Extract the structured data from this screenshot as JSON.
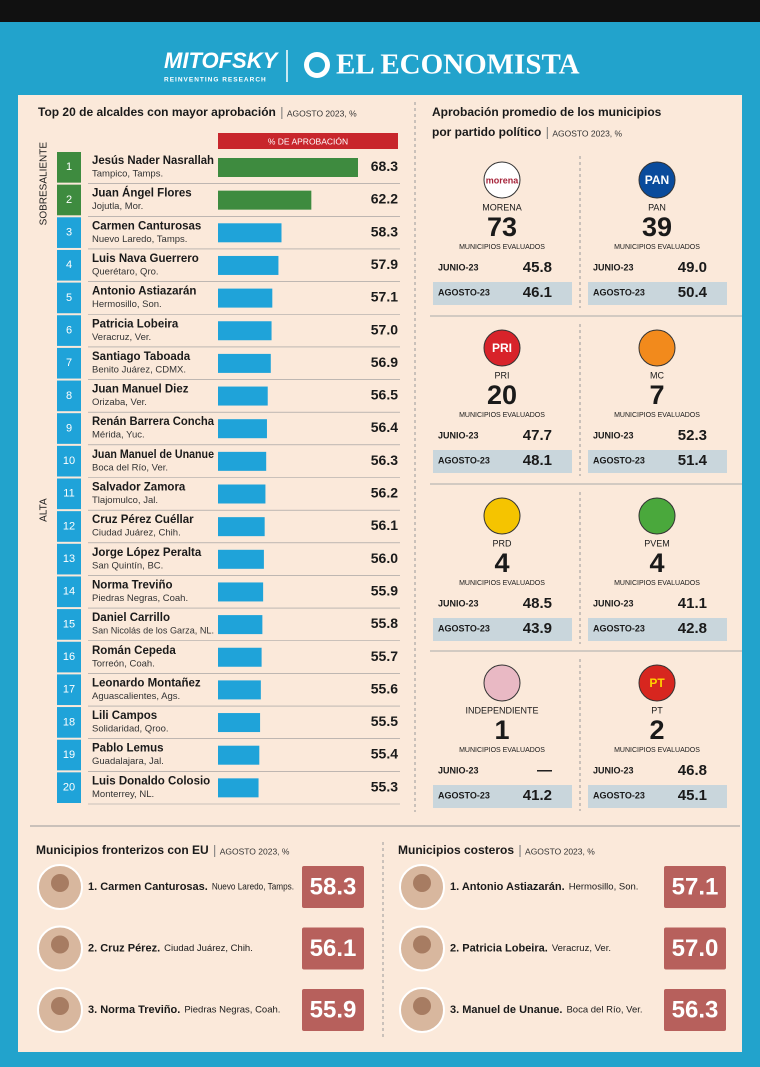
{
  "header": {
    "brand_left": "MITOFSKY",
    "brand_left_tagline": "REINVENTING RESEARCH",
    "brand_right": "EL ECONOMISTA"
  },
  "chart_data": {
    "type": "bar",
    "orientation": "horizontal",
    "title": "Top 20 de alcaldes con mayor aprobación",
    "subtitle": "AGOSTO 2023, %",
    "value_header": "% DE APROBACIÓN",
    "ranks": [
      1,
      2,
      3,
      4,
      5,
      6,
      7,
      8,
      9,
      10,
      11,
      12,
      13,
      14,
      15,
      16,
      17,
      18,
      19,
      20
    ],
    "categories": [
      "Jesús Nader Nasrallah",
      "Juan Ángel Flores",
      "Carmen Canturosas",
      "Luis Nava Guerrero",
      "Antonio Astiazarán",
      "Patricia Lobeira",
      "Santiago Taboada",
      "Juan Manuel Diez",
      "Renán Barrera Concha",
      "Juan Manuel de Unanue",
      "Salvador Zamora",
      "Cruz Pérez Cuéllar",
      "Jorge López Peralta",
      "Norma Treviño",
      "Daniel Carrillo",
      "Román Cepeda",
      "Leonardo Montañez",
      "Lili Campos",
      "Pablo Lemus",
      "Luis Donaldo Colosio"
    ],
    "locations": [
      "Tampico, Tamps.",
      "Jojutla, Mor.",
      "Nuevo Laredo, Tamps.",
      "Querétaro, Qro.",
      "Hermosillo, Son.",
      "Veracruz, Ver.",
      "Benito Juárez, CDMX.",
      "Orizaba, Ver.",
      "Mérida, Yuc.",
      "Boca del Río, Ver.",
      "Tlajomulco, Jal.",
      "Ciudad Juárez, Chih.",
      "San Quintín, BC.",
      "Piedras Negras, Coah.",
      "San Nicolás de los Garza, NL.",
      "Torreón, Coah.",
      "Aguascalientes, Ags.",
      "Solidaridad, Qroo.",
      "Guadalajara, Jal.",
      "Monterrey, NL."
    ],
    "series": [
      {
        "name": "SOBRESALIENTE",
        "color": "#3e8b3f",
        "values": [
          68.3,
          62.2,
          null,
          null,
          null,
          null,
          null,
          null,
          null,
          null,
          null,
          null,
          null,
          null,
          null,
          null,
          null,
          null,
          null,
          null
        ],
        "value_labels": [
          "68.3",
          "62.2",
          null,
          null,
          null,
          null,
          null,
          null,
          null,
          null,
          null,
          null,
          null,
          null,
          null,
          null,
          null,
          null,
          null,
          null
        ]
      },
      {
        "name": "ALTA",
        "color": "#1fa3d9",
        "values": [
          null,
          null,
          58.3,
          57.9,
          57.1,
          57.0,
          56.9,
          56.5,
          56.4,
          56.3,
          56.2,
          56.1,
          56.0,
          55.9,
          55.8,
          55.7,
          55.6,
          55.5,
          55.4,
          55.3
        ],
        "value_labels": [
          null,
          null,
          "58.3",
          "57.9",
          "57.1",
          "57.0",
          "56.9",
          "56.5",
          "56.4",
          "56.3",
          "56.2",
          "56.1",
          "56.0",
          "55.9",
          "55.8",
          "55.7",
          "55.6",
          "55.5",
          "55.4",
          "55.3"
        ]
      }
    ],
    "xlim": [
      50,
      70
    ]
  },
  "parties": {
    "title_lines": [
      "Aprobación promedio de los municipios",
      "por partido político"
    ],
    "subtitle": "AGOSTO 2023, %",
    "items": [
      {
        "name": "MORENA",
        "logo": {
          "text": "morena",
          "fill": "#ffffff",
          "color": "#a6243a"
        },
        "count": 73,
        "count_label": "MUNICIPIOS EVALUADOS",
        "rows": [
          {
            "label": "JUNIO-23",
            "value": "45.8"
          },
          {
            "label": "AGOSTO-23",
            "value": "46.1"
          }
        ]
      },
      {
        "name": "PAN",
        "logo": {
          "text": "PAN",
          "fill": "#0a4b9c",
          "color": "#ffffff"
        },
        "count": 39,
        "count_label": "MUNICIPIOS EVALUADOS",
        "rows": [
          {
            "label": "JUNIO-23",
            "value": "49.0"
          },
          {
            "label": "AGOSTO-23",
            "value": "50.4"
          }
        ]
      },
      {
        "name": "PRI",
        "logo": {
          "text": "PRI",
          "fill": "#d8232a",
          "color": "#ffffff"
        },
        "count": 20,
        "count_label": "MUNICIPIOS EVALUADOS",
        "rows": [
          {
            "label": "JUNIO-23",
            "value": "47.7"
          },
          {
            "label": "AGOSTO-23",
            "value": "48.1"
          }
        ]
      },
      {
        "name": "MC",
        "logo": {
          "fill": "#f28a1c"
        },
        "count": 7,
        "count_label": "MUNICIPIOS EVALUADOS",
        "rows": [
          {
            "label": "JUNIO-23",
            "value": "52.3"
          },
          {
            "label": "AGOSTO-23",
            "value": "51.4"
          }
        ]
      },
      {
        "name": "PRD",
        "logo": {
          "fill": "#f5c400"
        },
        "count": 4,
        "count_label": "MUNICIPIOS EVALUADOS",
        "rows": [
          {
            "label": "JUNIO-23",
            "value": "48.5"
          },
          {
            "label": "AGOSTO-23",
            "value": "43.9"
          }
        ]
      },
      {
        "name": "PVEM",
        "logo": {
          "fill": "#4aa83c"
        },
        "count": 4,
        "count_label": "MUNICIPIOS EVALUADOS",
        "rows": [
          {
            "label": "JUNIO-23",
            "value": "41.1"
          },
          {
            "label": "AGOSTO-23",
            "value": "42.8"
          }
        ]
      },
      {
        "name": "INDEPENDIENTE",
        "logo": {
          "fill": "#e9b9c4"
        },
        "count": 1,
        "count_label": "MUNICIPIOS EVALUADOS",
        "rows": [
          {
            "label": "JUNIO-23",
            "value": "—"
          },
          {
            "label": "AGOSTO-23",
            "value": "41.2"
          }
        ]
      },
      {
        "name": "PT",
        "logo": {
          "text": "PT",
          "fill": "#d7261f",
          "color": "#ffd200"
        },
        "count": 2,
        "count_label": "MUNICIPIOS EVALUADOS",
        "rows": [
          {
            "label": "JUNIO-23",
            "value": "46.8"
          },
          {
            "label": "AGOSTO-23",
            "value": "45.1"
          }
        ]
      }
    ]
  },
  "border": {
    "title": "Municipios fronterizos con EU",
    "subtitle": "AGOSTO 2023, %",
    "items": [
      {
        "name": "1. Carmen Canturosas.",
        "place": "Nuevo Laredo, Tamps.",
        "value": "58.3"
      },
      {
        "name": "2. Cruz Pérez.",
        "place": "Ciudad Juárez, Chih.",
        "value": "56.1"
      },
      {
        "name": "3. Norma Treviño.",
        "place": "Piedras Negras, Coah.",
        "value": "55.9"
      }
    ]
  },
  "coastal": {
    "title": "Municipios costeros",
    "subtitle": "AGOSTO 2023, %",
    "items": [
      {
        "name": "1. Antonio Astiazarán.",
        "place": "Hermosillo, Son.",
        "value": "57.1"
      },
      {
        "name": "2. Patricia Lobeira.",
        "place": "Veracruz, Ver.",
        "value": "57.0"
      },
      {
        "name": "3. Manuel de Unanue.",
        "place": "Boca del Río, Ver.",
        "value": "56.3"
      }
    ]
  }
}
